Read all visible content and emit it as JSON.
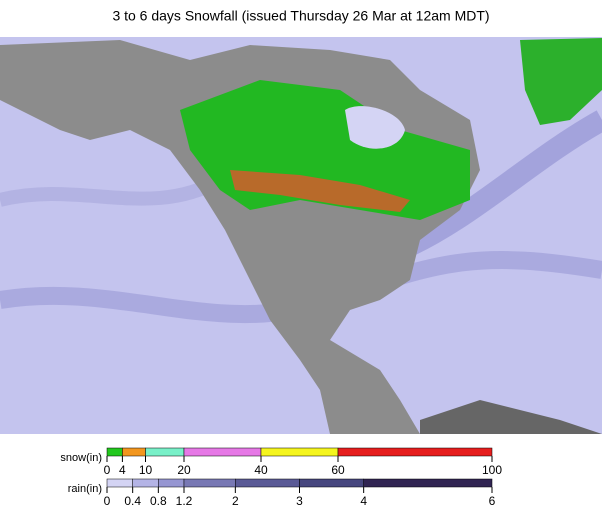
{
  "title": "3 to 6 days Snowfall (issued Thursday 26 Mar at 12am MDT)",
  "legends": [
    {
      "label": "snow(in)",
      "ticks": [
        0,
        4,
        10,
        20,
        40,
        60,
        100
      ],
      "colors": [
        "#22c81e",
        "#f2961e",
        "#78f0c8",
        "#e678e6",
        "#f5f51e",
        "#e61e1e"
      ]
    },
    {
      "label": "rain(in)",
      "ticks": [
        0,
        0.4,
        0.8,
        1.2,
        2,
        3,
        4,
        6
      ],
      "colors": [
        "#d4d4f4",
        "#b4b4e6",
        "#9696d2",
        "#7878b4",
        "#5a5a96",
        "#46467e",
        "#302452"
      ]
    }
  ]
}
